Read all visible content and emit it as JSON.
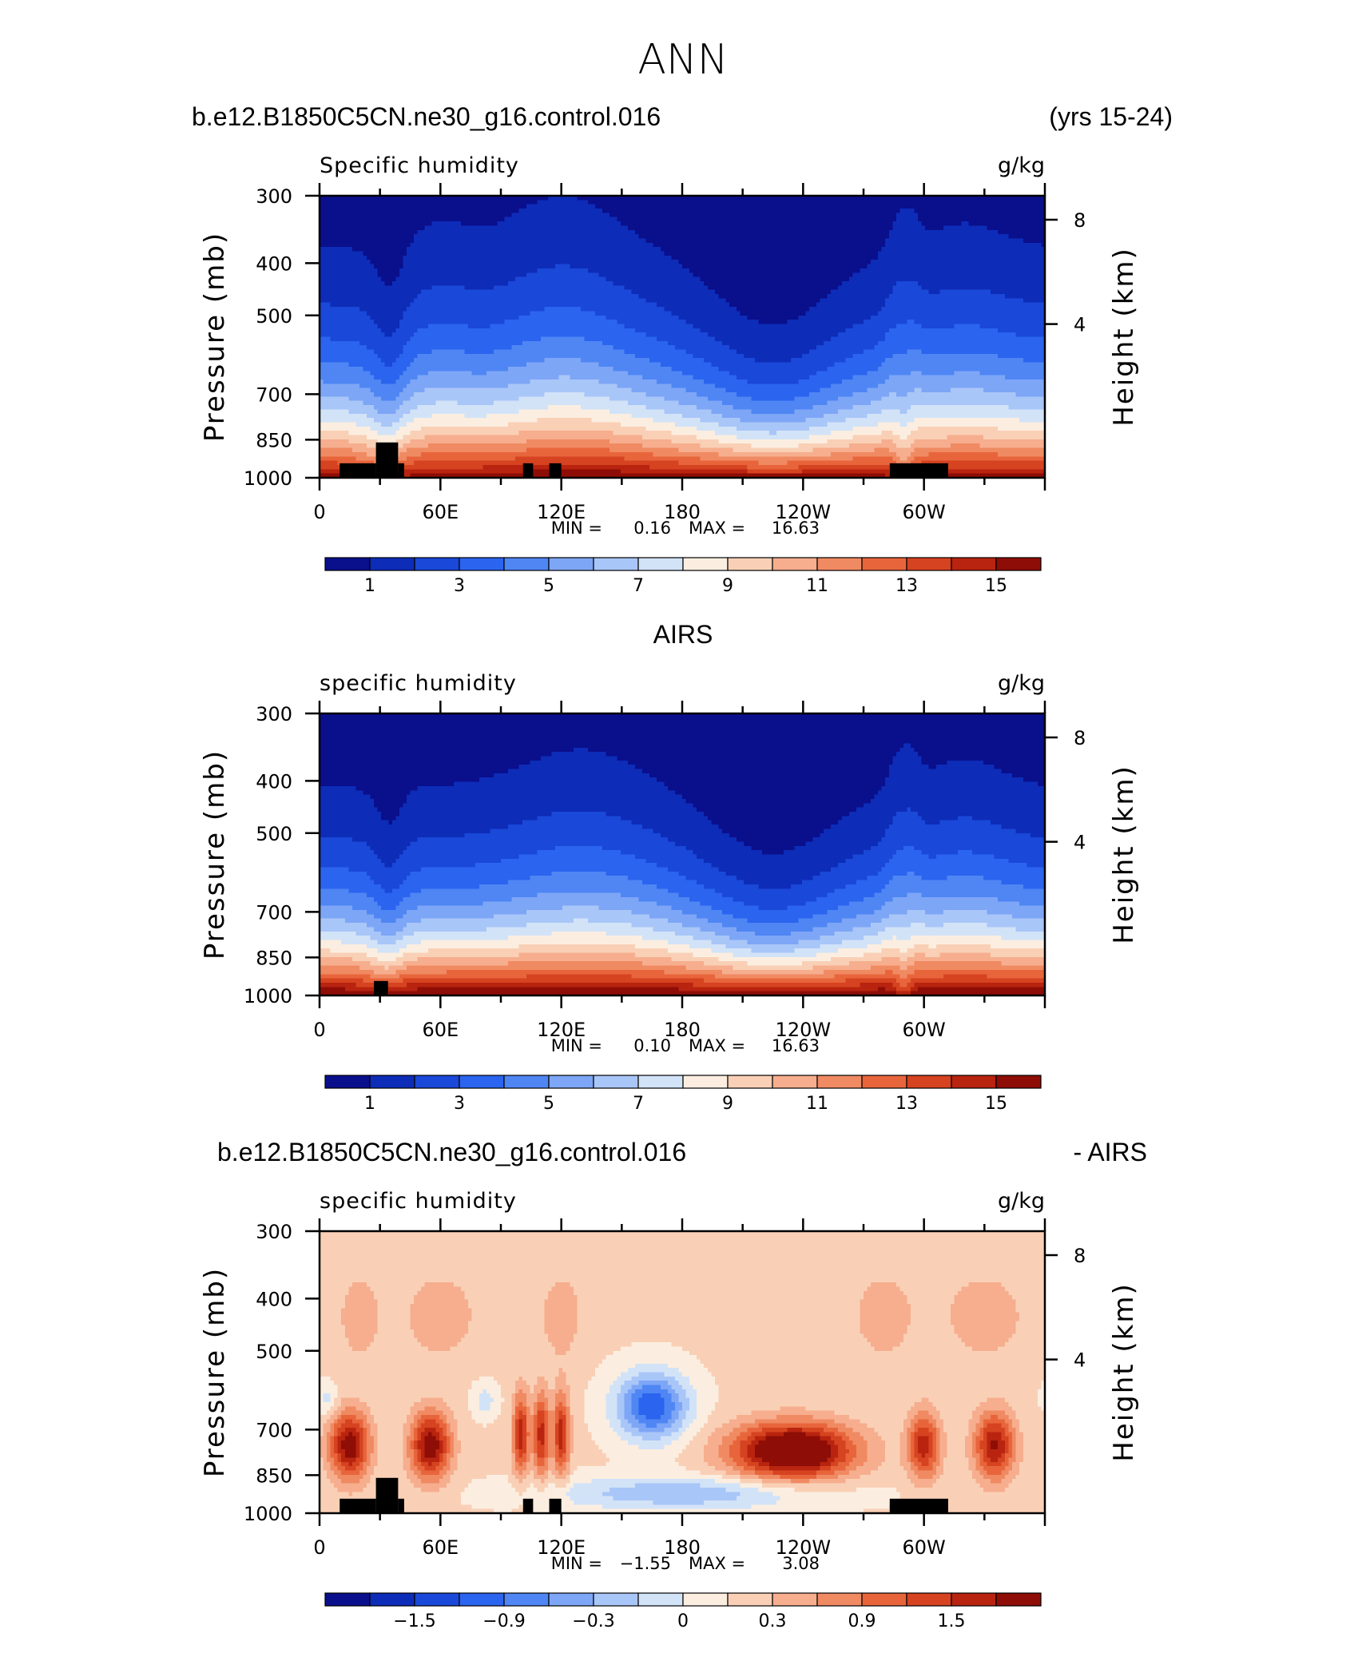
{
  "figure_title": "ANN",
  "panel_min_label": "MIN =",
  "panel_max_label": "MAX =",
  "chart_data": [
    {
      "type": "heatmap",
      "header_left": "b.e12.B1850C5CN.ne30_g16.control.016",
      "header_right": "(yrs 15-24)",
      "header_center": "",
      "title": "Specific humidity",
      "units": "g/kg",
      "ylabel": "Pressure (mb)",
      "y2label": "Height (km)",
      "x_ticks": [
        "0",
        "60E",
        "120E",
        "180",
        "120W",
        "60W"
      ],
      "y_ticks": [
        "300",
        "400",
        "500",
        "700",
        "850",
        "1000"
      ],
      "y2_ticks": [
        "8",
        "4"
      ],
      "min": "0.16",
      "max": "16.63",
      "colorbar_labels": [
        "1",
        "3",
        "5",
        "7",
        "9",
        "11",
        "13",
        "15"
      ],
      "field": "model"
    },
    {
      "type": "heatmap",
      "header_left": "",
      "header_right": "",
      "header_center": "AIRS",
      "title": "specific humidity",
      "units": "g/kg",
      "ylabel": "Pressure (mb)",
      "y2label": "Height (km)",
      "x_ticks": [
        "0",
        "60E",
        "120E",
        "180",
        "120W",
        "60W"
      ],
      "y_ticks": [
        "300",
        "400",
        "500",
        "700",
        "850",
        "1000"
      ],
      "y2_ticks": [
        "8",
        "4"
      ],
      "min": "0.10",
      "max": "16.63",
      "colorbar_labels": [
        "1",
        "3",
        "5",
        "7",
        "9",
        "11",
        "13",
        "15"
      ],
      "field": "obs"
    },
    {
      "type": "heatmap",
      "header_left": "b.e12.B1850C5CN.ne30_g16.control.016",
      "header_right": "- AIRS",
      "header_center": "",
      "title": "specific humidity",
      "units": "g/kg",
      "ylabel": "Pressure (mb)",
      "y2label": "Height (km)",
      "x_ticks": [
        "0",
        "60E",
        "120E",
        "180",
        "120W",
        "60W"
      ],
      "y_ticks": [
        "300",
        "400",
        "500",
        "700",
        "850",
        "1000"
      ],
      "y2_ticks": [
        "8",
        "4"
      ],
      "min": "−1.55",
      "max": "3.08",
      "colorbar_labels": [
        "−1.5",
        "−0.9",
        "−0.3",
        "0",
        "0.3",
        "0.9",
        "1.5"
      ],
      "field": "diff"
    }
  ],
  "colors": {
    "humidity_palette": [
      "#0a0f8c",
      "#0d2cb8",
      "#1a48d8",
      "#2b64ee",
      "#4f86f4",
      "#7ea6f6",
      "#a9c6f8",
      "#d2e3f8",
      "#fbeee0",
      "#f9d0b6",
      "#f6ae8e",
      "#f08a62",
      "#e8653c",
      "#d64320",
      "#b8240f",
      "#8e0d06"
    ],
    "diff_palette": [
      "#0a0f8c",
      "#0d2cb8",
      "#1a48d8",
      "#2b64ee",
      "#4f86f4",
      "#7ea6f6",
      "#a9c6f8",
      "#d2e3f8",
      "#fbeee0",
      "#f9d0b6",
      "#f6ae8e",
      "#f08a62",
      "#e8653c",
      "#d64320",
      "#b8240f",
      "#8e0d06"
    ],
    "terrain": "#000000"
  }
}
